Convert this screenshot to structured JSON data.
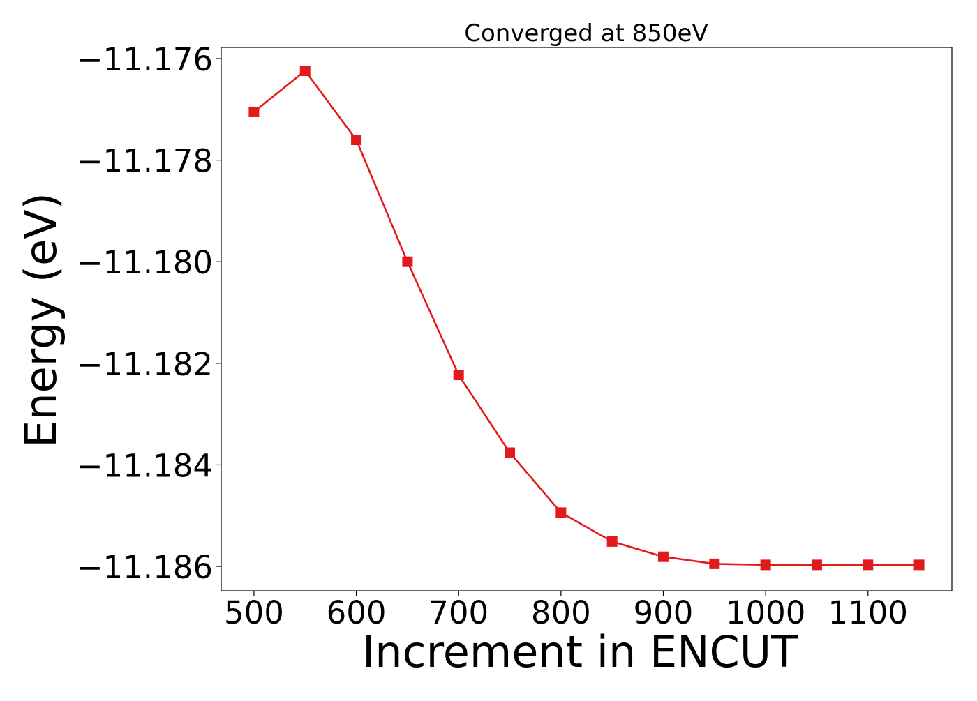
{
  "chart_data": {
    "type": "line",
    "title": "Converged at 850eV",
    "xlabel": "Increment in ENCUT",
    "ylabel": "Energy (eV)",
    "x": [
      500,
      550,
      600,
      650,
      700,
      750,
      800,
      850,
      900,
      950,
      1000,
      1050,
      1100,
      1150
    ],
    "series": [
      {
        "values": [
          -11.17705,
          -11.17624,
          -11.1776,
          -11.18,
          -11.18223,
          -11.18376,
          -11.18494,
          -11.18551,
          -11.18581,
          -11.18595,
          -11.18597,
          -11.18597,
          -11.18597,
          -11.18597
        ],
        "color": "#e31a1c",
        "marker": "square"
      }
    ],
    "xlim": [
      468,
      1182
    ],
    "ylim": [
      -11.18648,
      -11.17578
    ],
    "xticks": [
      500,
      600,
      700,
      800,
      900,
      1000,
      1100
    ],
    "xtick_labels": [
      "500",
      "600",
      "700",
      "800",
      "900",
      "1000",
      "1100"
    ],
    "yticks": [
      -11.176,
      -11.178,
      -11.18,
      -11.182,
      -11.184,
      -11.186
    ],
    "ytick_labels": [
      "−11.176",
      "−11.178",
      "−11.180",
      "−11.182",
      "−11.184",
      "−11.186"
    ],
    "grid": false,
    "legend": "none"
  }
}
